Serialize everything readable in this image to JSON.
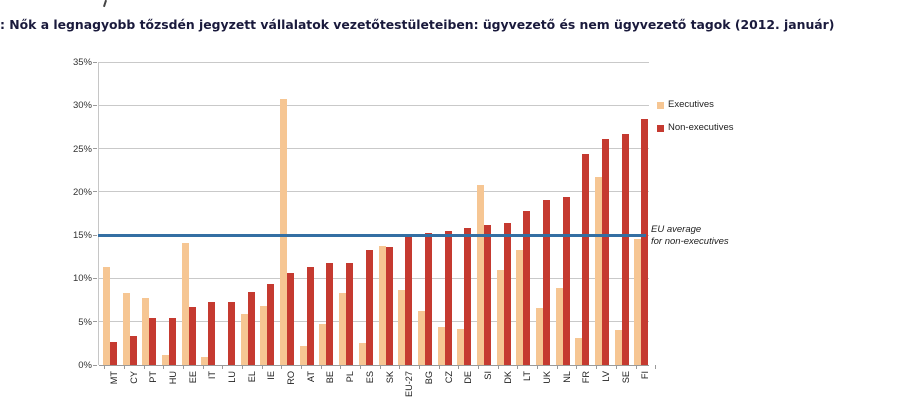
{
  "title": {
    "text": ": Nők a legnagyobb tőzsdén jegyzett vállalatok vezetőtestületeiben: ügyvezető és nem ügyvezető tagok (2012. január)"
  },
  "colors": {
    "executives_bar": "#f6c693",
    "non_executives_bar": "#c53a30",
    "eu_average_line": "#346fa3",
    "gridline": "#c9c9c9"
  },
  "legend": {
    "executives_label": "Executives",
    "non_executives_label": "Non-executives"
  },
  "annotation": {
    "line1": "EU average",
    "line2": "for non-executives"
  },
  "chart_data": {
    "type": "bar",
    "title": "Nők a legnagyobb tőzsdén jegyzett vállalatok vezetőtestületeiben: ügyvezető és nem ügyvezető tagok (2012. január)",
    "categories": [
      "MT",
      "CY",
      "PT",
      "HU",
      "EE",
      "IT",
      "LU",
      "EL",
      "IE",
      "RO",
      "AT",
      "BE",
      "PL",
      "ES",
      "SK",
      "EU-27",
      "BG",
      "CZ",
      "DE",
      "SI",
      "DK",
      "LT",
      "UK",
      "NL",
      "FR",
      "LV",
      "SE",
      "FI"
    ],
    "series": [
      {
        "name": "Executives",
        "color": "#f6c693",
        "values": [
          11.3,
          8.3,
          7.7,
          1.1,
          14.1,
          0.9,
          0,
          5.9,
          6.8,
          30.7,
          2.2,
          4.7,
          8.3,
          2.6,
          13.7,
          8.7,
          6.2,
          4.4,
          4.2,
          20.8,
          11.0,
          13.3,
          6.6,
          8.9,
          3.1,
          21.7,
          4.1,
          14.6
        ]
      },
      {
        "name": "Non-executives",
        "color": "#c53a30",
        "values": [
          2.7,
          3.4,
          5.4,
          5.4,
          6.7,
          7.3,
          7.3,
          8.4,
          9.4,
          10.6,
          11.3,
          11.8,
          11.8,
          13.3,
          13.6,
          15.0,
          15.2,
          15.5,
          15.8,
          16.2,
          16.4,
          17.8,
          19.1,
          19.4,
          24.4,
          26.1,
          26.7,
          28.4
        ]
      }
    ],
    "ylabel": "",
    "xlabel": "",
    "ylim": [
      0,
      35
    ],
    "y_tick_step": 5,
    "y_tick_labels": [
      "0%",
      "5%",
      "10%",
      "15%",
      "20%",
      "25%",
      "30%",
      "35%"
    ],
    "grid": true,
    "legend_position": "right-top",
    "reference_line": {
      "value": 15,
      "label": "EU average for non-executives"
    }
  }
}
